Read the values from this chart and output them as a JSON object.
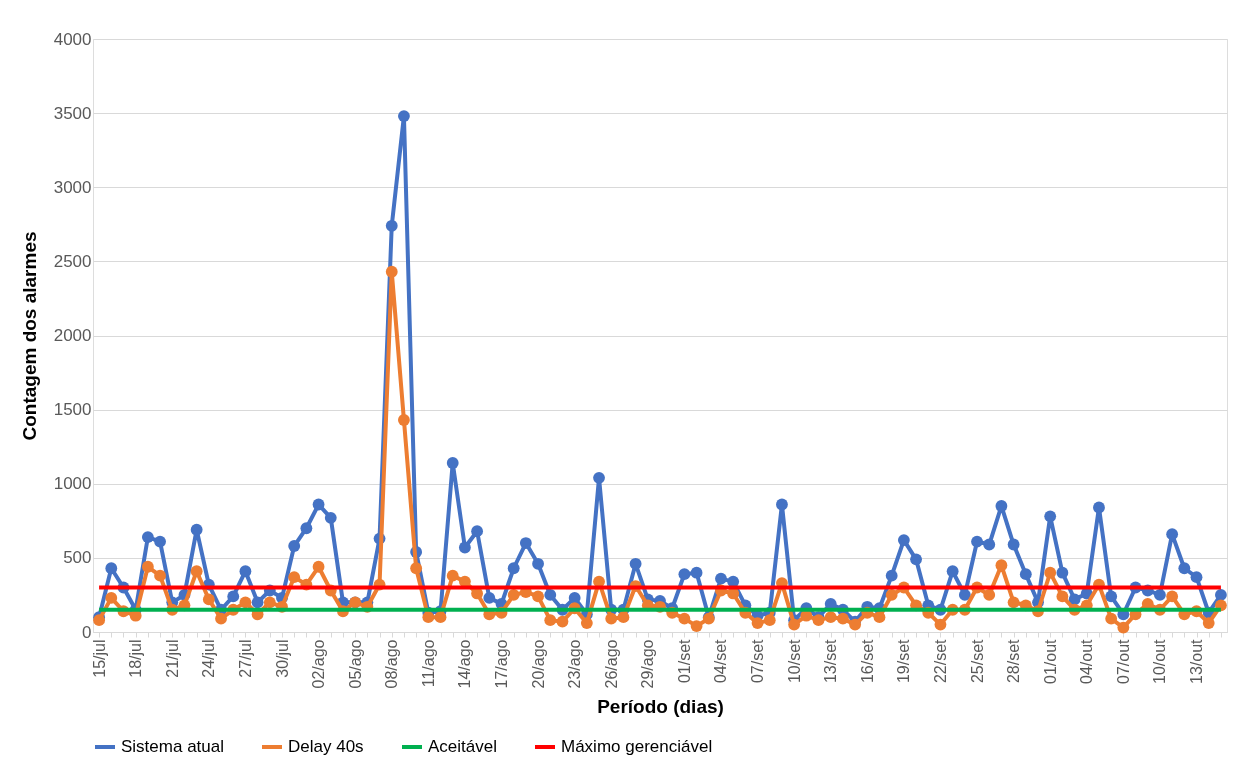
{
  "chart_data": {
    "type": "line",
    "xlabel": "Período (dias)",
    "ylabel": "Contagem dos alarmes",
    "categories": [
      "15/jul",
      null,
      null,
      "18/jul",
      null,
      null,
      "21/jul",
      null,
      null,
      "24/jul",
      null,
      null,
      "27/jul",
      null,
      null,
      "30/jul",
      null,
      null,
      "02/ago",
      null,
      null,
      "05/ago",
      null,
      null,
      "08/ago",
      null,
      null,
      "11/ago",
      null,
      null,
      "14/ago",
      null,
      null,
      "17/ago",
      null,
      null,
      "20/ago",
      null,
      null,
      "23/ago",
      null,
      null,
      "26/ago",
      null,
      null,
      "29/ago",
      null,
      null,
      "01/set",
      null,
      null,
      "04/set",
      null,
      null,
      "07/set",
      null,
      null,
      "10/set",
      null,
      null,
      "13/set",
      null,
      null,
      "16/set",
      null,
      null,
      "19/set",
      null,
      null,
      "22/set",
      null,
      null,
      "25/set",
      null,
      null,
      "28/set",
      null,
      null,
      "01/out",
      null,
      null,
      "04/out",
      null,
      null,
      "07/out",
      null,
      null,
      "10/out",
      null,
      null,
      "13/out",
      null,
      null
    ],
    "series": [
      {
        "name": "Sistema atual",
        "color": "#4472c4",
        "marker": "circle",
        "values": [
          100,
          430,
          300,
          150,
          640,
          610,
          200,
          250,
          690,
          320,
          150,
          240,
          410,
          200,
          280,
          230,
          580,
          700,
          860,
          770,
          200,
          200,
          200,
          630,
          2740,
          3480,
          540,
          130,
          140,
          1140,
          570,
          680,
          230,
          190,
          430,
          600,
          460,
          250,
          150,
          230,
          120,
          1040,
          150,
          150,
          460,
          220,
          210,
          160,
          390,
          400,
          100,
          360,
          340,
          180,
          110,
          130,
          860,
          80,
          160,
          100,
          190,
          150,
          70,
          170,
          160,
          380,
          620,
          490,
          180,
          150,
          410,
          250,
          610,
          590,
          850,
          590,
          390,
          200,
          780,
          400,
          220,
          260,
          840,
          240,
          120,
          300,
          280,
          250,
          660,
          430,
          370,
          130,
          250
        ]
      },
      {
        "name": "Delay 40s",
        "color": "#ed7d31",
        "marker": "circle",
        "values": [
          80,
          230,
          140,
          110,
          440,
          380,
          150,
          180,
          410,
          220,
          90,
          150,
          200,
          120,
          200,
          170,
          370,
          320,
          440,
          280,
          140,
          200,
          170,
          320,
          2430,
          1430,
          430,
          100,
          100,
          380,
          340,
          260,
          120,
          130,
          250,
          270,
          240,
          80,
          70,
          160,
          60,
          340,
          90,
          100,
          310,
          180,
          170,
          130,
          90,
          40,
          90,
          280,
          260,
          130,
          60,
          80,
          330,
          50,
          110,
          80,
          100,
          90,
          50,
          130,
          100,
          250,
          300,
          180,
          130,
          50,
          150,
          150,
          300,
          250,
          450,
          200,
          180,
          140,
          400,
          240,
          150,
          180,
          320,
          90,
          30,
          120,
          190,
          150,
          240,
          120,
          140,
          60,
          180
        ]
      },
      {
        "name": "Aceitável",
        "color": "#00b050",
        "marker": "none",
        "values": [
          150,
          150,
          150,
          150,
          150,
          150,
          150,
          150,
          150,
          150,
          150,
          150,
          150,
          150,
          150,
          150,
          150,
          150,
          150,
          150,
          150,
          150,
          150,
          150,
          150,
          150,
          150,
          150,
          150,
          150,
          150,
          150,
          150,
          150,
          150,
          150,
          150,
          150,
          150,
          150,
          150,
          150,
          150,
          150,
          150,
          150,
          150,
          150,
          150,
          150,
          150,
          150,
          150,
          150,
          150,
          150,
          150,
          150,
          150,
          150,
          150,
          150,
          150,
          150,
          150,
          150,
          150,
          150,
          150,
          150,
          150,
          150,
          150,
          150,
          150,
          150,
          150,
          150,
          150,
          150,
          150,
          150,
          150,
          150,
          150,
          150,
          150,
          150,
          150,
          150,
          150,
          150,
          150
        ]
      },
      {
        "name": "Máximo gerenciável",
        "color": "#ff0000",
        "marker": "none",
        "values": [
          300,
          300,
          300,
          300,
          300,
          300,
          300,
          300,
          300,
          300,
          300,
          300,
          300,
          300,
          300,
          300,
          300,
          300,
          300,
          300,
          300,
          300,
          300,
          300,
          300,
          300,
          300,
          300,
          300,
          300,
          300,
          300,
          300,
          300,
          300,
          300,
          300,
          300,
          300,
          300,
          300,
          300,
          300,
          300,
          300,
          300,
          300,
          300,
          300,
          300,
          300,
          300,
          300,
          300,
          300,
          300,
          300,
          300,
          300,
          300,
          300,
          300,
          300,
          300,
          300,
          300,
          300,
          300,
          300,
          300,
          300,
          300,
          300,
          300,
          300,
          300,
          300,
          300,
          300,
          300,
          300,
          300,
          300,
          300,
          300,
          300,
          300,
          300,
          300,
          300,
          300,
          300,
          300
        ]
      }
    ],
    "ylim": [
      0,
      4000
    ],
    "yticks": [
      0,
      500,
      1000,
      1500,
      2000,
      2500,
      3000,
      3500,
      4000
    ],
    "grid": "y",
    "legend": "bottom",
    "line_style": "solid"
  }
}
